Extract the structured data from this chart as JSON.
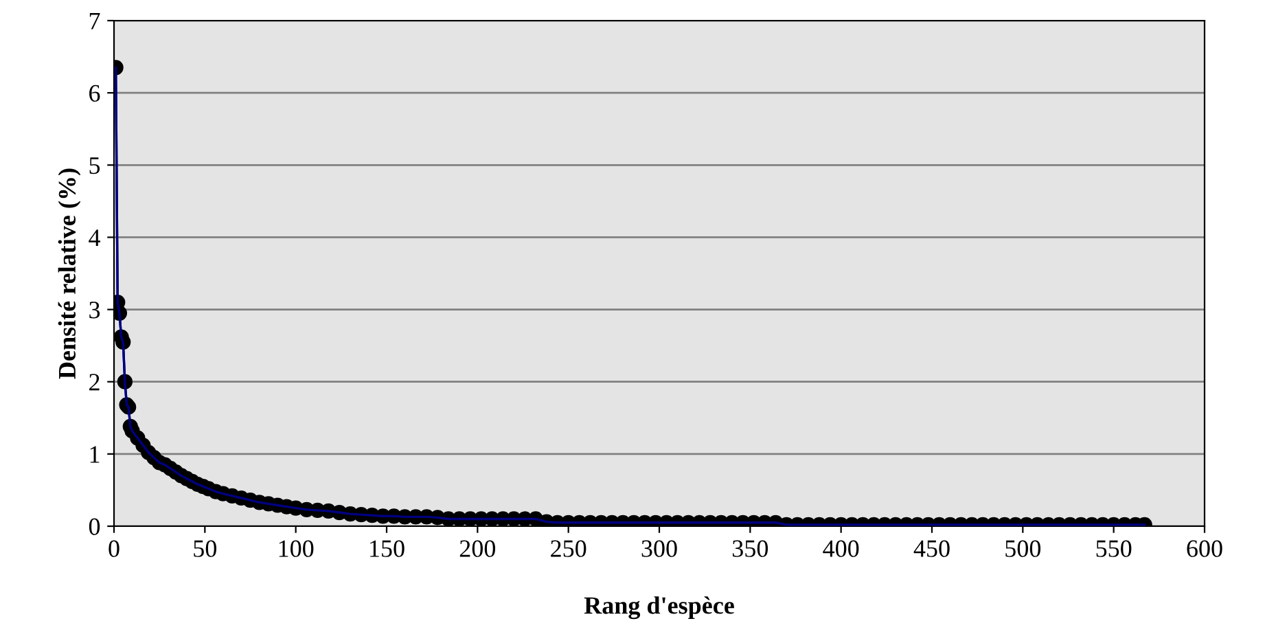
{
  "chart_data": {
    "type": "line",
    "xlabel": "Rang d'espèce",
    "ylabel": "Densité relative (%)",
    "xlim": [
      0,
      600
    ],
    "xticks": [
      0,
      50,
      100,
      150,
      200,
      250,
      300,
      350,
      400,
      450,
      500,
      550,
      600
    ],
    "ylim": [
      0,
      7
    ],
    "yticks": [
      0,
      1,
      2,
      3,
      4,
      5,
      6,
      7
    ],
    "grid": "y",
    "marker": "circle",
    "line_style": "solid",
    "series": [
      {
        "color": "#000080",
        "x": [
          1,
          2,
          3,
          4,
          5,
          6,
          7,
          8,
          9,
          10,
          13,
          16,
          19,
          22,
          25,
          28,
          31,
          34,
          37,
          40,
          43,
          46,
          49,
          52,
          56,
          60,
          65,
          70,
          75,
          80,
          85,
          90,
          95,
          100,
          106,
          112,
          118,
          124,
          130,
          136,
          142,
          148,
          154,
          160,
          166,
          172,
          178,
          184,
          190,
          196,
          202,
          208,
          214,
          220,
          226,
          232,
          238,
          244,
          250,
          256,
          262,
          268,
          274,
          280,
          286,
          292,
          298,
          304,
          310,
          316,
          322,
          328,
          334,
          340,
          346,
          352,
          358,
          364,
          370,
          376,
          382,
          388,
          394,
          400,
          406,
          412,
          418,
          424,
          430,
          436,
          442,
          448,
          454,
          460,
          466,
          472,
          478,
          484,
          490,
          496,
          502,
          508,
          514,
          520,
          526,
          532,
          538,
          544,
          550,
          556,
          562,
          567
        ],
        "values": [
          6.35,
          3.1,
          2.95,
          2.62,
          2.55,
          2.0,
          1.68,
          1.65,
          1.38,
          1.32,
          1.22,
          1.12,
          1.02,
          0.95,
          0.88,
          0.85,
          0.8,
          0.75,
          0.7,
          0.66,
          0.62,
          0.58,
          0.55,
          0.52,
          0.48,
          0.45,
          0.42,
          0.39,
          0.36,
          0.33,
          0.31,
          0.29,
          0.27,
          0.25,
          0.23,
          0.22,
          0.21,
          0.19,
          0.17,
          0.16,
          0.15,
          0.14,
          0.14,
          0.13,
          0.13,
          0.13,
          0.12,
          0.1,
          0.1,
          0.1,
          0.1,
          0.1,
          0.1,
          0.1,
          0.1,
          0.1,
          0.06,
          0.05,
          0.05,
          0.05,
          0.05,
          0.05,
          0.05,
          0.05,
          0.05,
          0.05,
          0.05,
          0.05,
          0.05,
          0.05,
          0.05,
          0.05,
          0.05,
          0.05,
          0.05,
          0.05,
          0.05,
          0.05,
          0.02,
          0.02,
          0.02,
          0.02,
          0.02,
          0.02,
          0.02,
          0.02,
          0.02,
          0.02,
          0.02,
          0.02,
          0.02,
          0.02,
          0.02,
          0.02,
          0.02,
          0.02,
          0.02,
          0.02,
          0.02,
          0.02,
          0.02,
          0.02,
          0.02,
          0.02,
          0.02,
          0.02,
          0.02,
          0.02,
          0.02,
          0.02,
          0.02,
          0.02
        ]
      }
    ]
  }
}
